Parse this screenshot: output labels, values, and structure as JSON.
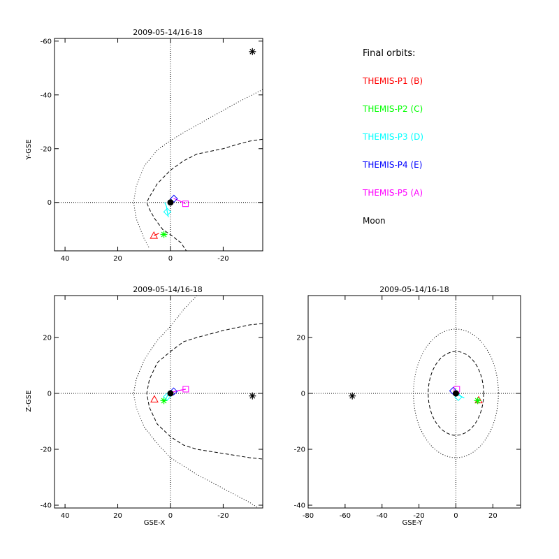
{
  "legend": {
    "title": "Final orbits:",
    "items": [
      {
        "label": "THEMIS-P1 (B)",
        "color": "#ff0000"
      },
      {
        "label": "THEMIS-P2 (C)",
        "color": "#00ff00"
      },
      {
        "label": "THEMIS-P3 (D)",
        "color": "#00ffff"
      },
      {
        "label": "THEMIS-P4 (E)",
        "color": "#0000ff"
      },
      {
        "label": "THEMIS-P5 (A)",
        "color": "#ff00ff"
      },
      {
        "label": "Moon",
        "color": "#000000"
      }
    ]
  },
  "chart_data": [
    {
      "id": "xy",
      "type": "scatter",
      "title": "2009-05-14/16-18",
      "xlabel": "",
      "ylabel": "Y-GSE",
      "xlim": [
        44,
        -35
      ],
      "ylim": [
        18,
        -61
      ],
      "xticks": [
        40,
        20,
        0,
        -20
      ],
      "yticks": [
        -60,
        -40,
        -20,
        0
      ],
      "grid": false,
      "crosshair_at_zero": true,
      "boundaries": [
        {
          "style": "dotted",
          "points": [
            [
              -35,
              -42
            ],
            [
              -25,
              -37
            ],
            [
              -15,
              -31.5
            ],
            [
              -5,
              -26
            ],
            [
              0,
              -23
            ],
            [
              5,
              -19.5
            ],
            [
              10,
              -13.5
            ],
            [
              13,
              -6
            ],
            [
              14,
              0
            ],
            [
              13,
              6
            ],
            [
              10,
              13.5
            ],
            [
              8,
              17
            ]
          ]
        },
        {
          "style": "dashed",
          "points": [
            [
              -35,
              -23.5
            ],
            [
              -30,
              -22.8
            ],
            [
              -25,
              -21.5
            ],
            [
              -20,
              -20
            ],
            [
              -15,
              -19
            ],
            [
              -10,
              -18
            ],
            [
              -5,
              -15.5
            ],
            [
              0,
              -12
            ],
            [
              5,
              -7
            ],
            [
              8,
              -2
            ],
            [
              9,
              0
            ],
            [
              8,
              2.5
            ],
            [
              6,
              6
            ],
            [
              3,
              10
            ],
            [
              0,
              12
            ],
            [
              -4,
              15
            ],
            [
              -6,
              18
            ]
          ]
        }
      ],
      "markers": [
        {
          "object": "THEMIS-P1 (B)",
          "symbol": "triangle",
          "x": 6.3,
          "y": 12.3
        },
        {
          "object": "THEMIS-P2 (C)",
          "symbol": "asterisk",
          "x": 2.5,
          "y": 11.9
        },
        {
          "object": "THEMIS-P3 (D)",
          "symbol": "diamond",
          "x": 1.2,
          "y": 3.5
        },
        {
          "object": "THEMIS-P4 (E)",
          "symbol": "diamond",
          "x": -1.3,
          "y": -1.4
        },
        {
          "object": "THEMIS-P5 (A)",
          "symbol": "square",
          "x": -5.7,
          "y": 0.5
        },
        {
          "object": "Moon",
          "symbol": "asterisk",
          "x": -31.1,
          "y": -56.1
        },
        {
          "object": "Earth",
          "symbol": "dot",
          "x": 0,
          "y": 0
        }
      ],
      "tracks": [
        {
          "object": "THEMIS-P1 (B)",
          "points": [
            [
              6.3,
              12.3
            ],
            [
              4.4,
              11.5
            ]
          ]
        },
        {
          "object": "THEMIS-P3 (D)",
          "points": [
            [
              2.2,
              0
            ],
            [
              1.5,
              1.5
            ],
            [
              1.2,
              3.5
            ],
            [
              0.8,
              5.5
            ]
          ]
        },
        {
          "object": "THEMIS-P5 (A)",
          "points": [
            [
              -1.2,
              -1.5
            ],
            [
              -3,
              -0.8
            ],
            [
              -5.7,
              0.5
            ]
          ]
        }
      ]
    },
    {
      "id": "xz",
      "type": "scatter",
      "title": "2009-05-14/16-18",
      "xlabel": "GSE-X",
      "ylabel": "Z-GSE",
      "xlim": [
        44,
        -35
      ],
      "ylim": [
        -41,
        35
      ],
      "xticks": [
        40,
        20,
        0,
        -20
      ],
      "yticks": [
        -40,
        -20,
        0,
        20
      ],
      "grid": false,
      "crosshair_at_zero": true,
      "boundaries": [
        {
          "style": "dotted",
          "points": [
            [
              -10,
              35
            ],
            [
              -5,
              30
            ],
            [
              0,
              24
            ],
            [
              5,
              19
            ],
            [
              10,
              12
            ],
            [
              13,
              5
            ],
            [
              14,
              0
            ],
            [
              13,
              -5
            ],
            [
              10,
              -12
            ],
            [
              5,
              -18
            ],
            [
              0,
              -23
            ],
            [
              -10,
              -29
            ],
            [
              -20,
              -34
            ],
            [
              -30,
              -39
            ],
            [
              -35,
              -42
            ]
          ]
        },
        {
          "style": "dashed",
          "points": [
            [
              -35,
              25
            ],
            [
              -30,
              24.5
            ],
            [
              -20,
              22.5
            ],
            [
              -10,
              20
            ],
            [
              -5,
              18.5
            ],
            [
              0,
              15
            ],
            [
              5,
              11
            ],
            [
              8,
              5
            ],
            [
              9,
              0
            ],
            [
              8,
              -5
            ],
            [
              5,
              -11
            ],
            [
              0,
              -15.5
            ],
            [
              -5,
              -18.5
            ],
            [
              -10,
              -20
            ],
            [
              -20,
              -21.5
            ],
            [
              -30,
              -23
            ],
            [
              -35,
              -23.5
            ]
          ]
        }
      ],
      "markers": [
        {
          "object": "THEMIS-P1 (B)",
          "symbol": "triangle",
          "x": 6.1,
          "y": -2.1
        },
        {
          "object": "THEMIS-P2 (C)",
          "symbol": "asterisk",
          "x": 2.5,
          "y": -2.6
        },
        {
          "object": "THEMIS-P3 (D)",
          "symbol": "diamond",
          "x": 1.3,
          "y": -1.2
        },
        {
          "object": "THEMIS-P4 (E)",
          "symbol": "diamond",
          "x": -1.2,
          "y": 0.7
        },
        {
          "object": "THEMIS-P5 (A)",
          "symbol": "square",
          "x": -5.8,
          "y": 1.5
        },
        {
          "object": "Moon",
          "symbol": "asterisk",
          "x": -31.1,
          "y": -0.9
        },
        {
          "object": "Earth",
          "symbol": "dot",
          "x": 0,
          "y": 0
        }
      ],
      "tracks": [
        {
          "object": "THEMIS-P3 (D)",
          "points": [
            [
              2,
              -2.5
            ],
            [
              1.5,
              -1.5
            ],
            [
              1,
              -0.5
            ]
          ]
        },
        {
          "object": "THEMIS-P5 (A)",
          "points": [
            [
              -1,
              0.5
            ],
            [
              -3,
              1
            ],
            [
              -5.8,
              1.5
            ]
          ]
        }
      ]
    },
    {
      "id": "yz",
      "type": "scatter",
      "title": "2009-05-14/16-18",
      "xlabel": "GSE-Y",
      "ylabel": "",
      "xlim": [
        -80,
        35
      ],
      "ylim": [
        -41,
        35
      ],
      "xticks": [
        -80,
        -60,
        -40,
        -20,
        0,
        20
      ],
      "yticks": [
        -40,
        -20,
        0,
        20
      ],
      "grid": false,
      "crosshair_at_zero": true,
      "circles": [
        {
          "style": "dotted",
          "r": 23
        },
        {
          "style": "dashed",
          "r": 15
        }
      ],
      "markers": [
        {
          "object": "THEMIS-P1 (B)",
          "symbol": "triangle",
          "x": 12.3,
          "y": -2.4
        },
        {
          "object": "THEMIS-P2 (C)",
          "symbol": "asterisk",
          "x": 11.8,
          "y": -2.6
        },
        {
          "object": "THEMIS-P3 (D)",
          "symbol": "diamond",
          "x": 1.3,
          "y": -1.3
        },
        {
          "object": "THEMIS-P4 (E)",
          "symbol": "diamond",
          "x": -1.5,
          "y": 0.9
        },
        {
          "object": "THEMIS-P5 (A)",
          "symbol": "square",
          "x": 0.5,
          "y": 1.5
        },
        {
          "object": "Moon",
          "symbol": "asterisk",
          "x": -56.1,
          "y": -0.9
        },
        {
          "object": "Earth",
          "symbol": "dot",
          "x": 0,
          "y": 0
        }
      ],
      "tracks": [
        {
          "object": "THEMIS-P3 (D)",
          "points": [
            [
              -1,
              0.5
            ],
            [
              1,
              -0.5
            ],
            [
              2.5,
              -1
            ],
            [
              4.5,
              -1.6
            ]
          ]
        },
        {
          "object": "THEMIS-P1 (B)",
          "points": [
            [
              12.3,
              -2.4
            ],
            [
              13,
              -2.6
            ]
          ]
        }
      ]
    }
  ]
}
